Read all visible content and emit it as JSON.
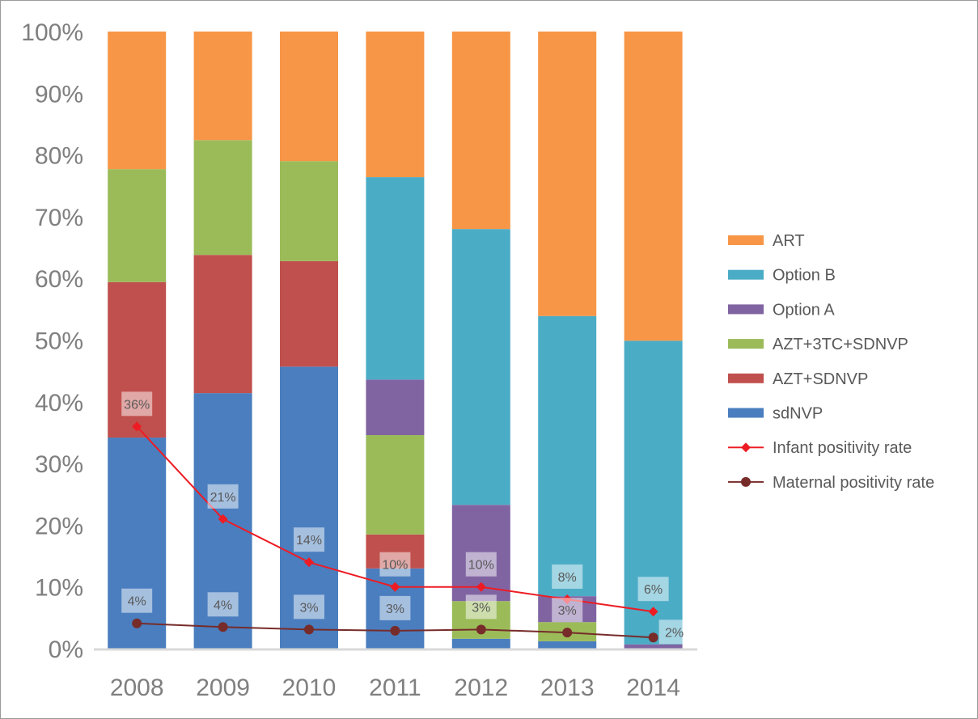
{
  "chart_data": {
    "type": "bar",
    "stacked": true,
    "percent_stacked": true,
    "categories": [
      "2008",
      "2009",
      "2010",
      "2011",
      "2012",
      "2013",
      "2014"
    ],
    "ylim": [
      0,
      100
    ],
    "yticks": [
      "0%",
      "10%",
      "20%",
      "30%",
      "40%",
      "50%",
      "60%",
      "70%",
      "80%",
      "90%",
      "100%"
    ],
    "grid": false,
    "legend_position": "right",
    "series": [
      {
        "name": "sdNVP",
        "color": "#4a7ebf",
        "values": [
          34.2,
          41.4,
          45.7,
          13.0,
          1.6,
          1.2,
          0
        ]
      },
      {
        "name": "AZT+SDNVP",
        "color": "#c0504d",
        "values": [
          25.2,
          22.4,
          17.1,
          5.5,
          0,
          0,
          0
        ]
      },
      {
        "name": "AZT+3TC+SDNVP",
        "color": "#9bbb59",
        "values": [
          18.3,
          18.6,
          16.2,
          16.1,
          6.1,
          3.1,
          0
        ]
      },
      {
        "name": "Option A",
        "color": "#8064a2",
        "values": [
          0,
          0,
          0,
          9.0,
          15.6,
          4.2,
          0.7
        ]
      },
      {
        "name": "Option B",
        "color": "#4bacc6",
        "values": [
          0,
          0,
          0,
          32.8,
          44.7,
          45.4,
          49.2
        ]
      },
      {
        "name": "ART",
        "color": "#f79646",
        "values": [
          22.3,
          17.6,
          21.0,
          23.6,
          32.0,
          46.1,
          50.1
        ]
      }
    ],
    "lines": [
      {
        "name": "Infant positivity rate",
        "color": "#ed1c24",
        "marker": "diamond",
        "values": [
          36,
          21,
          14,
          10,
          10,
          8,
          6
        ],
        "labels": [
          "36%",
          "21%",
          "14%",
          "10%",
          "10%",
          "8%",
          "6%"
        ]
      },
      {
        "name": "Maternal positivity rate",
        "color": "#772c2a",
        "marker": "circle",
        "values": [
          4.1,
          3.5,
          3.1,
          2.9,
          3.1,
          2.6,
          1.8
        ],
        "labels": [
          "4%",
          "4%",
          "3%",
          "3%",
          "3%",
          "3%",
          "2%"
        ]
      }
    ],
    "legend_order": [
      "ART",
      "Option B",
      "Option A",
      "AZT+3TC+SDNVP",
      "AZT+SDNVP",
      "sdNVP",
      "Infant positivity rate",
      "Maternal positivity rate"
    ]
  }
}
